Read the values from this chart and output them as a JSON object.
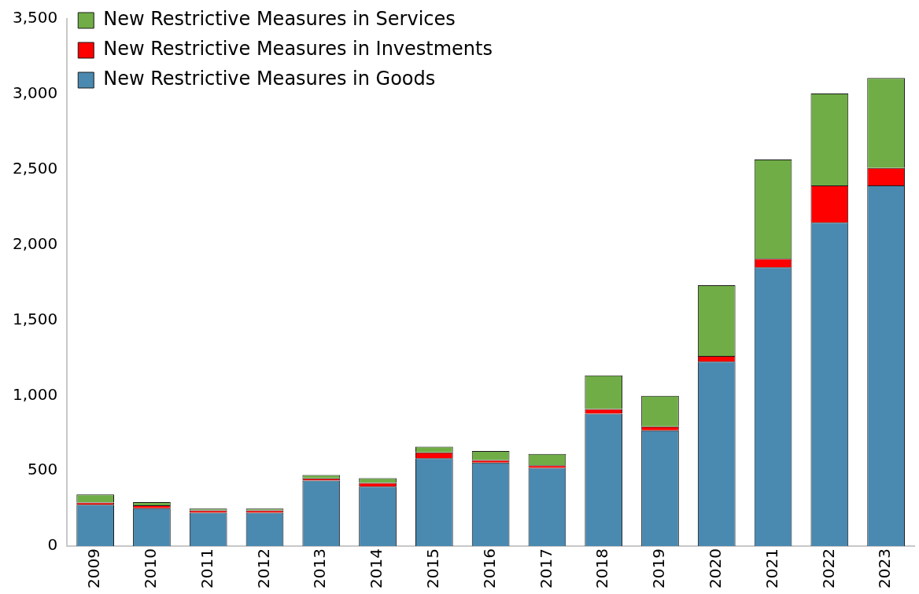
{
  "chart_data": {
    "type": "bar",
    "stacked": true,
    "categories": [
      "2009",
      "2010",
      "2011",
      "2012",
      "2013",
      "2014",
      "2015",
      "2016",
      "2017",
      "2018",
      "2019",
      "2020",
      "2021",
      "2022",
      "2023"
    ],
    "series": [
      {
        "name": "New Restrictive Measures in Goods",
        "color": "#4a89b0",
        "values": [
          276,
          252,
          222,
          222,
          436,
          396,
          583,
          555,
          519,
          879,
          768,
          1225,
          1851,
          2148,
          2394
        ]
      },
      {
        "name": "New Restrictive Measures in Investments",
        "color": "#ff0000",
        "values": [
          14,
          20,
          16,
          16,
          14,
          25,
          40,
          16,
          18,
          32,
          27,
          38,
          57,
          246,
          117
        ]
      },
      {
        "name": "New Restrictive Measures in Services",
        "color": "#70ad47",
        "values": [
          53,
          20,
          11,
          11,
          23,
          31,
          37,
          60,
          75,
          222,
          203,
          469,
          658,
          610,
          596
        ]
      }
    ],
    "ylim": [
      0,
      3500
    ],
    "yticks": [
      0,
      500,
      {
        "value": 1000,
        "label": "1,000"
      },
      {
        "value": 1500,
        "label": "1,500"
      },
      {
        "value": 2000,
        "label": "2,000"
      },
      {
        "value": 2500,
        "label": "2,500"
      },
      {
        "value": 3000,
        "label": "3,000"
      },
      {
        "value": 3500,
        "label": "3,500"
      }
    ],
    "grid": false,
    "legend": "top left"
  }
}
